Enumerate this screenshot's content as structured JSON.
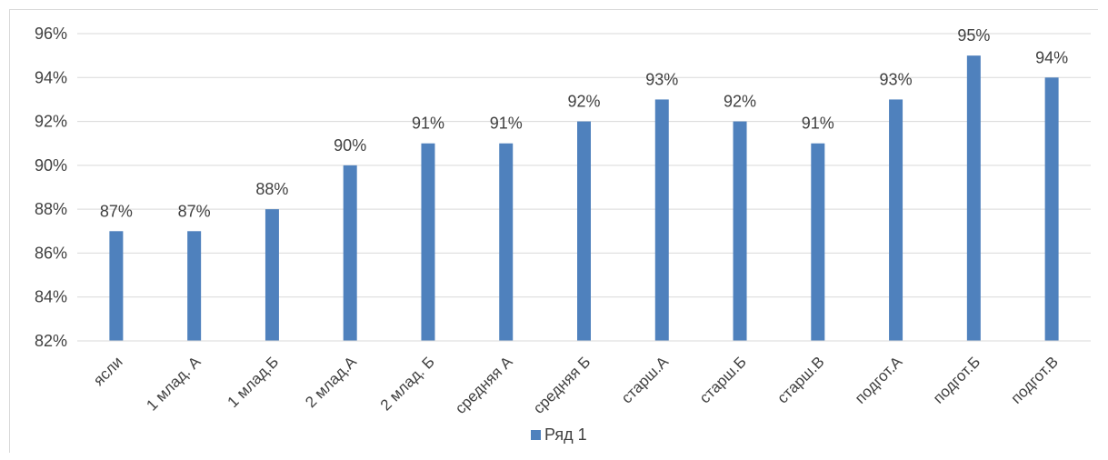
{
  "chart_data": {
    "type": "bar",
    "title": "",
    "xlabel": "",
    "ylabel": "",
    "categories": [
      "ясли",
      "1 млад. А",
      "1 млад.Б",
      "2 млад.А",
      "2 млад. Б",
      "средняя А",
      "средняя Б",
      "старш.А",
      "старш.Б",
      "старш.В",
      "подгот.А",
      "подгот.Б",
      "подгот.В"
    ],
    "series": [
      {
        "name": "Ряд 1",
        "values": [
          87,
          87,
          88,
          90,
          91,
          91,
          92,
          93,
          92,
          91,
          93,
          95,
          94
        ],
        "color": "#4f81bd"
      }
    ],
    "data_labels": [
      "87%",
      "87%",
      "88%",
      "90%",
      "91%",
      "91%",
      "92%",
      "93%",
      "92%",
      "91%",
      "93%",
      "95%",
      "94%"
    ],
    "ylim": [
      82,
      96
    ],
    "yticks": [
      82,
      84,
      86,
      88,
      90,
      92,
      94,
      96
    ],
    "ytick_labels": [
      "82%",
      "84%",
      "86%",
      "88%",
      "90%",
      "92%",
      "94%",
      "96%"
    ],
    "grid": true,
    "gridline_color": "#d9d9d9",
    "legend_position": "bottom"
  }
}
